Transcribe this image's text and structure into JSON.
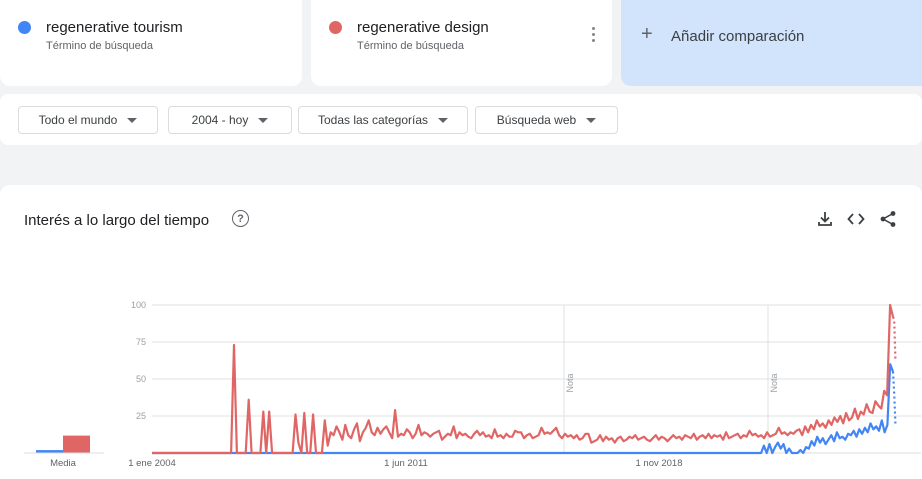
{
  "terms": [
    {
      "name": "regenerative tourism",
      "subtitle": "Término de búsqueda",
      "color": "#4285f4"
    },
    {
      "name": "regenerative design",
      "subtitle": "Término de búsqueda",
      "color": "#e06666"
    }
  ],
  "add_comparison": {
    "label": "Añadir comparación"
  },
  "filters": {
    "region": "Todo el mundo",
    "time": "2004 - hoy",
    "category": "Todas las categorías",
    "search_type": "Búsqueda web"
  },
  "chart": {
    "title": "Interés a lo largo del tiempo",
    "help_glyph": "?",
    "download_icon": "download-icon",
    "embed_icon": "embed-code-icon",
    "share_icon": "share-icon"
  },
  "chart_data": {
    "type": "line",
    "y_ticks": [
      "100",
      "75",
      "50",
      "25"
    ],
    "ylim": [
      0,
      100
    ],
    "x_tick_labels": [
      "1 ene 2004",
      "1 jun 2011",
      "1 nov 2018"
    ],
    "notes": [
      "Nota",
      "Nota"
    ],
    "average_label": "Media",
    "averages": [
      {
        "name": "regenerative tourism",
        "value": 2
      },
      {
        "name": "regenerative design",
        "value": 12
      }
    ],
    "series": [
      {
        "name": "regenerative design",
        "color": "#e06666",
        "values": [
          0,
          0,
          0,
          0,
          0,
          0,
          0,
          0,
          0,
          0,
          0,
          0,
          0,
          0,
          0,
          0,
          0,
          0,
          0,
          0,
          0,
          0,
          0,
          0,
          0,
          0,
          0,
          0,
          73,
          0,
          0,
          0,
          0,
          36,
          0,
          0,
          0,
          0,
          28,
          0,
          28,
          0,
          0,
          0,
          0,
          0,
          0,
          0,
          0,
          26,
          7,
          0,
          27,
          0,
          0,
          26,
          0,
          0,
          0,
          22,
          5,
          14,
          12,
          18,
          14,
          9,
          19,
          12,
          10,
          16,
          20,
          8,
          14,
          17,
          22,
          14,
          12,
          17,
          13,
          16,
          18,
          14,
          10,
          29,
          11,
          13,
          12,
          16,
          14,
          10,
          13,
          19,
          12,
          14,
          13,
          11,
          13,
          14,
          15,
          9,
          11,
          13,
          12,
          18,
          10,
          14,
          12,
          13,
          11,
          10,
          13,
          15,
          12,
          14,
          11,
          12,
          10,
          16,
          11,
          12,
          10,
          13,
          11,
          11,
          15,
          14,
          14,
          10,
          12,
          13,
          10,
          11,
          12,
          17,
          13,
          14,
          13,
          15,
          17,
          12,
          10,
          13,
          11,
          12,
          10,
          12,
          9,
          10,
          13,
          13,
          7,
          8,
          9,
          12,
          8,
          11,
          9,
          10,
          7,
          10,
          11,
          8,
          9,
          11,
          10,
          12,
          9,
          10,
          11,
          9,
          8,
          10,
          12,
          9,
          11,
          10,
          8,
          10,
          12,
          10,
          11,
          9,
          12,
          11,
          10,
          13,
          9,
          11,
          12,
          10,
          13,
          10,
          12,
          11,
          12,
          9,
          14,
          10,
          11,
          12,
          13,
          10,
          12,
          11,
          15,
          12,
          13,
          11,
          12,
          10,
          14,
          11,
          12,
          13,
          17,
          13,
          14,
          12,
          14,
          13,
          15,
          16,
          12,
          18,
          14,
          19,
          16,
          22,
          18,
          20,
          17,
          22,
          19,
          24,
          21,
          25,
          20,
          27,
          22,
          24,
          30,
          23,
          28,
          26,
          33,
          28,
          27,
          35,
          32,
          30,
          42,
          39,
          100,
          92
        ],
        "projected_tail": [
          90,
          63
        ]
      },
      {
        "name": "regenerative tourism",
        "color": "#4285f4",
        "values": [
          0,
          0,
          0,
          0,
          0,
          0,
          0,
          0,
          0,
          0,
          0,
          0,
          0,
          0,
          0,
          0,
          0,
          0,
          0,
          0,
          0,
          0,
          0,
          0,
          0,
          0,
          0,
          0,
          0,
          0,
          0,
          0,
          0,
          0,
          0,
          0,
          0,
          0,
          0,
          0,
          0,
          0,
          0,
          0,
          0,
          0,
          0,
          0,
          0,
          0,
          0,
          0,
          0,
          0,
          0,
          0,
          0,
          0,
          0,
          0,
          0,
          0,
          0,
          0,
          0,
          0,
          0,
          0,
          0,
          0,
          0,
          0,
          0,
          0,
          0,
          0,
          0,
          0,
          0,
          0,
          0,
          0,
          0,
          0,
          0,
          0,
          0,
          0,
          0,
          0,
          0,
          0,
          0,
          0,
          0,
          0,
          0,
          0,
          0,
          0,
          0,
          0,
          0,
          0,
          0,
          0,
          0,
          0,
          0,
          0,
          0,
          0,
          0,
          0,
          0,
          0,
          0,
          0,
          0,
          0,
          0,
          0,
          0,
          0,
          0,
          0,
          0,
          0,
          0,
          0,
          0,
          0,
          0,
          0,
          0,
          0,
          0,
          0,
          0,
          0,
          0,
          0,
          0,
          0,
          0,
          0,
          0,
          0,
          0,
          0,
          0,
          0,
          0,
          0,
          0,
          0,
          0,
          0,
          0,
          0,
          0,
          0,
          0,
          0,
          0,
          0,
          0,
          0,
          0,
          0,
          0,
          0,
          0,
          0,
          0,
          0,
          0,
          0,
          0,
          0,
          0,
          0,
          0,
          0,
          0,
          0,
          0,
          0,
          0,
          0,
          0,
          0,
          0,
          0,
          0,
          0,
          0,
          0,
          0,
          0,
          0,
          0,
          0,
          0,
          0,
          0,
          0,
          0,
          0,
          0,
          0,
          0,
          0,
          0,
          0,
          0,
          0,
          0,
          5,
          0,
          6,
          0,
          4,
          7,
          3,
          6,
          0,
          3,
          0,
          0,
          0,
          2,
          0,
          4,
          3,
          8,
          5,
          11,
          7,
          10,
          6,
          9,
          12,
          8,
          14,
          10,
          11,
          9,
          13,
          12,
          15,
          11,
          16,
          13,
          17,
          14,
          20,
          16,
          18,
          15,
          22,
          14,
          19,
          60,
          55
        ],
        "projected_tail": [
          40,
          20
        ]
      }
    ]
  }
}
